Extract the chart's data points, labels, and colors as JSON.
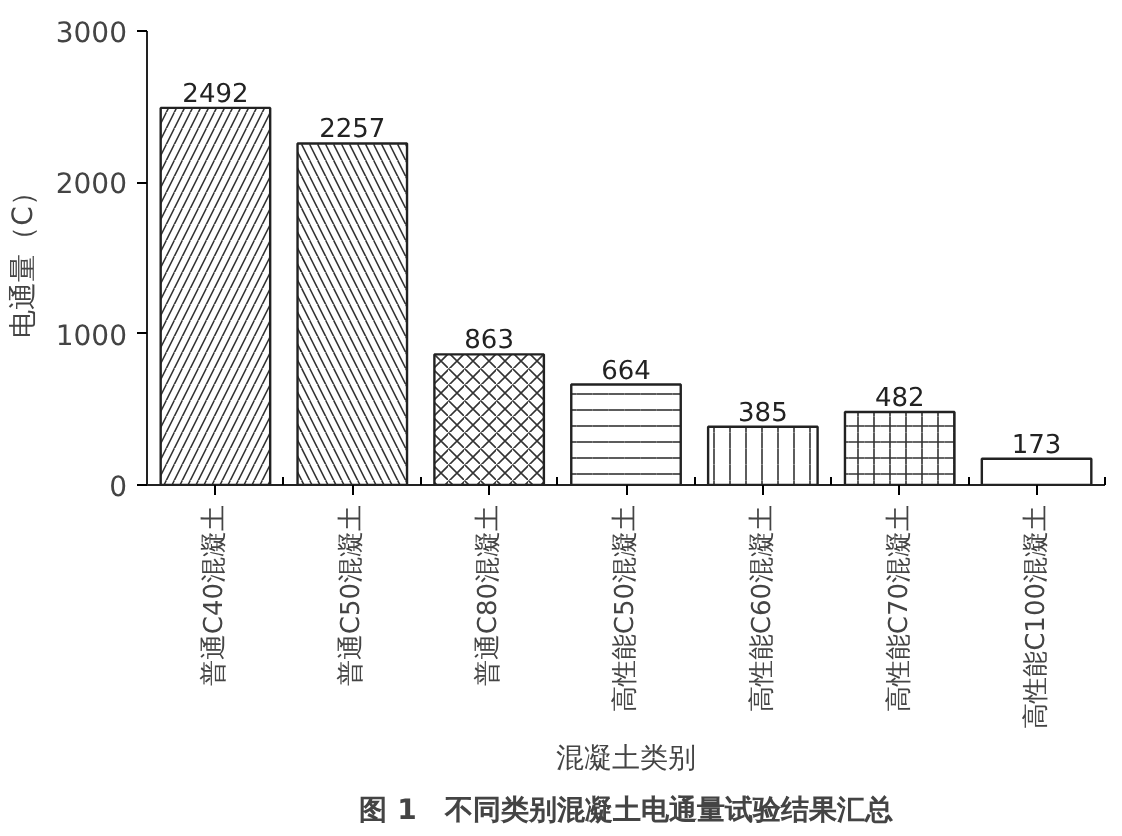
{
  "chart_data": {
    "type": "bar",
    "title": "图 1　不同类别混凝土电通量试验结果汇总",
    "xlabel": "混凝土类别",
    "ylabel": "电通量（C）",
    "categories": [
      "普通C40混凝土",
      "普通C50混凝土",
      "普通C80混凝土",
      "高性能C50混凝土",
      "高性能C60混凝土",
      "高性能C70混凝土",
      "高性能C100混凝土"
    ],
    "values": [
      2492,
      2257,
      863,
      664,
      385,
      482,
      173
    ],
    "color": "#ffffff",
    "ylim": [
      0,
      3000
    ],
    "yticks": [
      0,
      1000,
      2000,
      3000
    ],
    "grid": false,
    "data_labels": true
  }
}
